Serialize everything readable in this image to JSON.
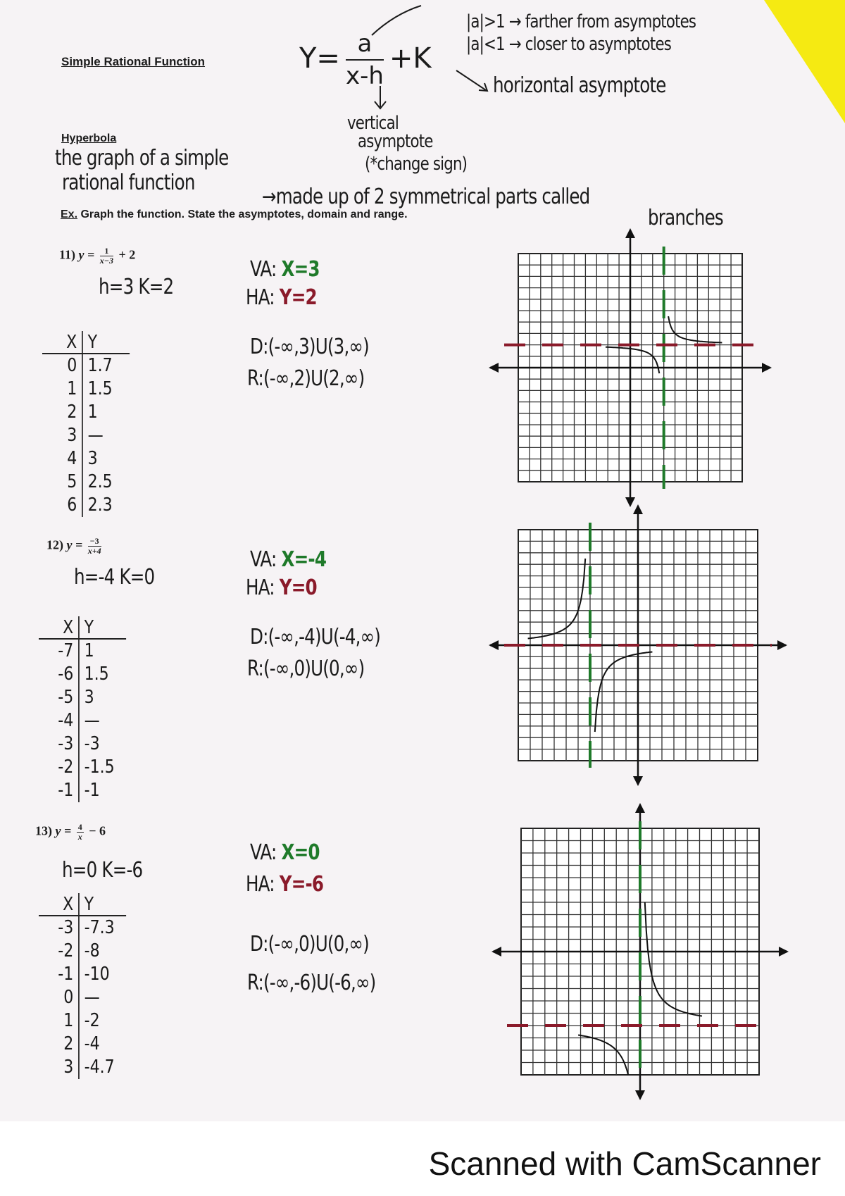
{
  "header": {
    "section_title": "Simple Rational Function",
    "formula": {
      "lhs": "Y=",
      "numerator": "a",
      "denominator": "x-h",
      "tail": "+K"
    },
    "note_a_greater": "|a|>1 → farther from asymptotes",
    "note_a_less": "|a|<1 → closer to asymptotes",
    "note_k": "horizontal asymptote",
    "note_h_1": "vertical",
    "note_h_2": "asymptote",
    "note_h_3": "(*change sign)"
  },
  "hyperbola": {
    "label": "Hyperbola",
    "def_line1": "the graph of a simple",
    "def_line2": "rational function",
    "def_line3": "→made up of 2 symmetrical parts called",
    "def_line4": "branches"
  },
  "instructions": {
    "prefix": "Ex.",
    "text": " Graph the function.  State the asymptotes, domain and range."
  },
  "problems": [
    {
      "number": "11)",
      "y": "y =",
      "numerator": "1",
      "denominator": "x−3",
      "tail": "+ 2",
      "hk": "h=3  K=2",
      "va_label": "VA:",
      "va_value": "X=3",
      "ha_label": "HA:",
      "ha_value": "Y=2",
      "domain": "D:(-∞,3)U(3,∞)",
      "range": "R:(-∞,2)U(2,∞)",
      "table_header": [
        "X",
        "Y"
      ],
      "table": [
        [
          "0",
          "1.7"
        ],
        [
          "1",
          "1.5"
        ],
        [
          "2",
          "1"
        ],
        [
          "3",
          "—"
        ],
        [
          "4",
          "3"
        ],
        [
          "5",
          "2.5"
        ],
        [
          "6",
          "2.3"
        ]
      ],
      "graph": {
        "a": 1,
        "h": 3,
        "k": 2,
        "grid_cells": 20
      }
    },
    {
      "number": "12)",
      "y": "y =",
      "numerator": "−3",
      "denominator": "x+4",
      "tail": "",
      "hk": "h=-4  K=0",
      "va_label": "VA:",
      "va_value": "X=-4",
      "ha_label": "HA:",
      "ha_value": "Y=0",
      "domain": "D:(-∞,-4)U(-4,∞)",
      "range": "R:(-∞,0)U(0,∞)",
      "table_header": [
        "X",
        "Y"
      ],
      "table": [
        [
          "-7",
          "1"
        ],
        [
          "-6",
          "1.5"
        ],
        [
          "-5",
          "3"
        ],
        [
          "-4",
          "—"
        ],
        [
          "-3",
          "-3"
        ],
        [
          "-2",
          "-1.5"
        ],
        [
          "-1",
          "-1"
        ]
      ],
      "graph": {
        "a": -3,
        "h": -4,
        "k": 0,
        "grid_cells": 20
      }
    },
    {
      "number": "13)",
      "y": "y =",
      "numerator": "4",
      "denominator": "x",
      "tail": "− 6",
      "hk": "h=0  K=-6",
      "va_label": "VA:",
      "va_value": "X=0",
      "ha_label": "HA:",
      "ha_value": "Y=-6",
      "domain": "D:(-∞,0)U(0,∞)",
      "range": "R:(-∞,-6)U(-6,∞)",
      "table_header": [
        "X",
        "Y"
      ],
      "table": [
        [
          "-3",
          "-7.3"
        ],
        [
          "-2",
          "-8"
        ],
        [
          "-1",
          "-10"
        ],
        [
          "0",
          "—"
        ],
        [
          "1",
          "-2"
        ],
        [
          "2",
          "-4"
        ],
        [
          "3",
          "-4.7"
        ]
      ],
      "graph": {
        "a": 4,
        "h": 0,
        "k": -6,
        "grid_cells": 20
      }
    }
  ],
  "colors": {
    "va": "#1f7a2a",
    "ha": "#8a1a2a",
    "ink": "#1b1b1b",
    "sticky": "#f5ea12"
  },
  "watermark": "Scanned with CamScanner"
}
